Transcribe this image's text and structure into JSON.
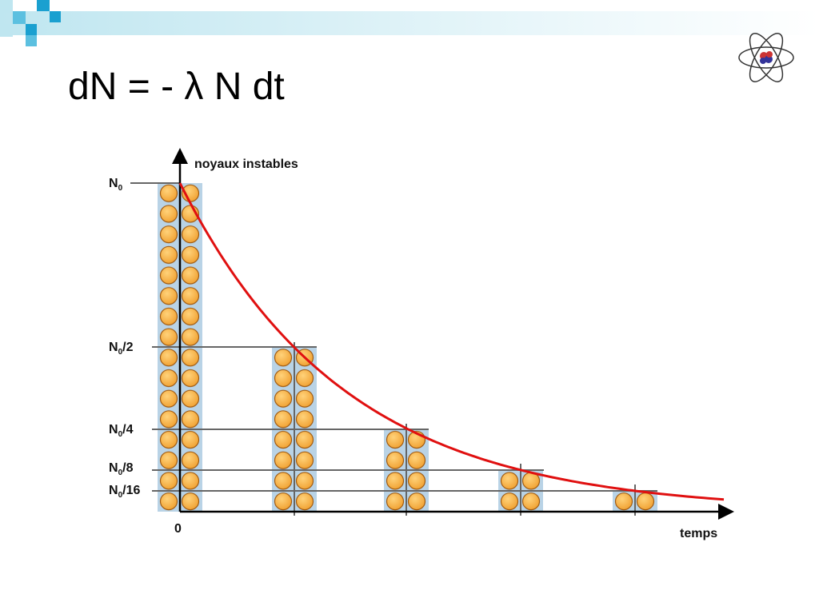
{
  "title": "dN =  - λ N dt",
  "diagram": {
    "y_axis_label": "noyaux instables",
    "x_axis_label": "temps",
    "origin_label": "0",
    "levels": [
      {
        "symbol": "N",
        "subscript": "0"
      },
      {
        "symbol": "N",
        "subscript": "0",
        "suffix": "/2"
      },
      {
        "symbol": "N",
        "subscript": "0",
        "suffix": "/4"
      },
      {
        "symbol": "N",
        "subscript": "0",
        "suffix": "/8"
      },
      {
        "symbol": "N",
        "subscript": "0",
        "suffix": "/16"
      }
    ]
  }
}
